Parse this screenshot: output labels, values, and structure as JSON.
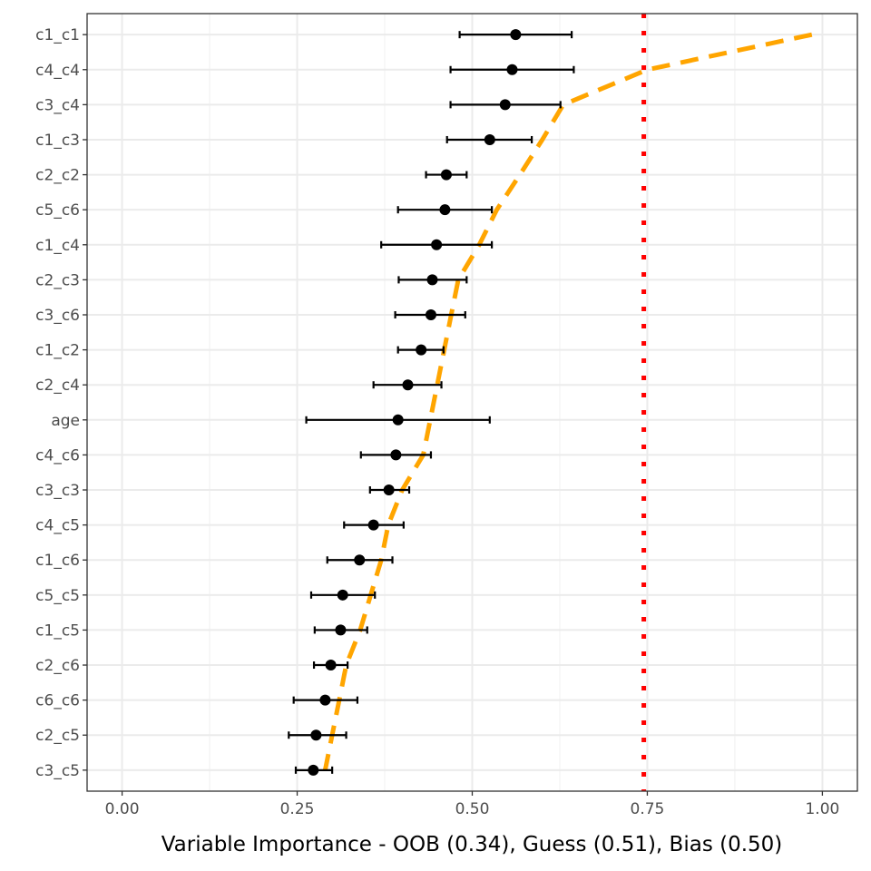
{
  "chart_data": {
    "type": "scatter",
    "title": "",
    "xlabel": "Variable Importance - OOB (0.34), Guess (0.51), Bias (0.50)",
    "ylabel": "",
    "xlim": [
      -0.05,
      1.05
    ],
    "x_ticks": [
      0.0,
      0.25,
      0.5,
      0.75,
      1.0
    ],
    "x_tick_labels": [
      "0.00",
      "0.25",
      "0.50",
      "0.75",
      "1.00"
    ],
    "grid": true,
    "categories": [
      "c1_c1",
      "c4_c4",
      "c3_c4",
      "c1_c3",
      "c2_c2",
      "c5_c6",
      "c1_c4",
      "c2_c3",
      "c3_c6",
      "c1_c2",
      "c2_c4",
      "age",
      "c4_c6",
      "c3_c3",
      "c4_c5",
      "c1_c6",
      "c5_c5",
      "c1_c5",
      "c2_c6",
      "c6_c6",
      "c2_c5",
      "c3_c5"
    ],
    "series": [
      {
        "kind": "points_with_error_bars",
        "color": "#000000",
        "values": [
          0.562,
          0.557,
          0.547,
          0.525,
          0.463,
          0.461,
          0.449,
          0.443,
          0.441,
          0.427,
          0.408,
          0.394,
          0.391,
          0.381,
          0.359,
          0.339,
          0.315,
          0.312,
          0.298,
          0.29,
          0.277,
          0.273
        ],
        "lower": [
          0.482,
          0.469,
          0.469,
          0.464,
          0.434,
          0.394,
          0.37,
          0.395,
          0.39,
          0.394,
          0.359,
          0.263,
          0.341,
          0.354,
          0.317,
          0.293,
          0.27,
          0.275,
          0.274,
          0.245,
          0.238,
          0.248
        ],
        "upper": [
          0.642,
          0.645,
          0.626,
          0.585,
          0.492,
          0.528,
          0.528,
          0.492,
          0.49,
          0.459,
          0.456,
          0.525,
          0.441,
          0.41,
          0.402,
          0.386,
          0.361,
          0.35,
          0.322,
          0.336,
          0.32,
          0.3
        ]
      },
      {
        "kind": "dashed_line",
        "color": "#FFA500",
        "values": [
          0.985,
          0.75,
          0.63,
          0.6,
          0.568,
          0.535,
          0.51,
          0.48,
          0.47,
          0.46,
          0.45,
          0.44,
          0.43,
          0.4,
          0.38,
          0.37,
          0.355,
          0.34,
          0.32,
          0.31,
          0.3,
          0.29
        ]
      },
      {
        "kind": "dotted_vline",
        "color": "#FF0000",
        "x": 0.745
      }
    ]
  }
}
